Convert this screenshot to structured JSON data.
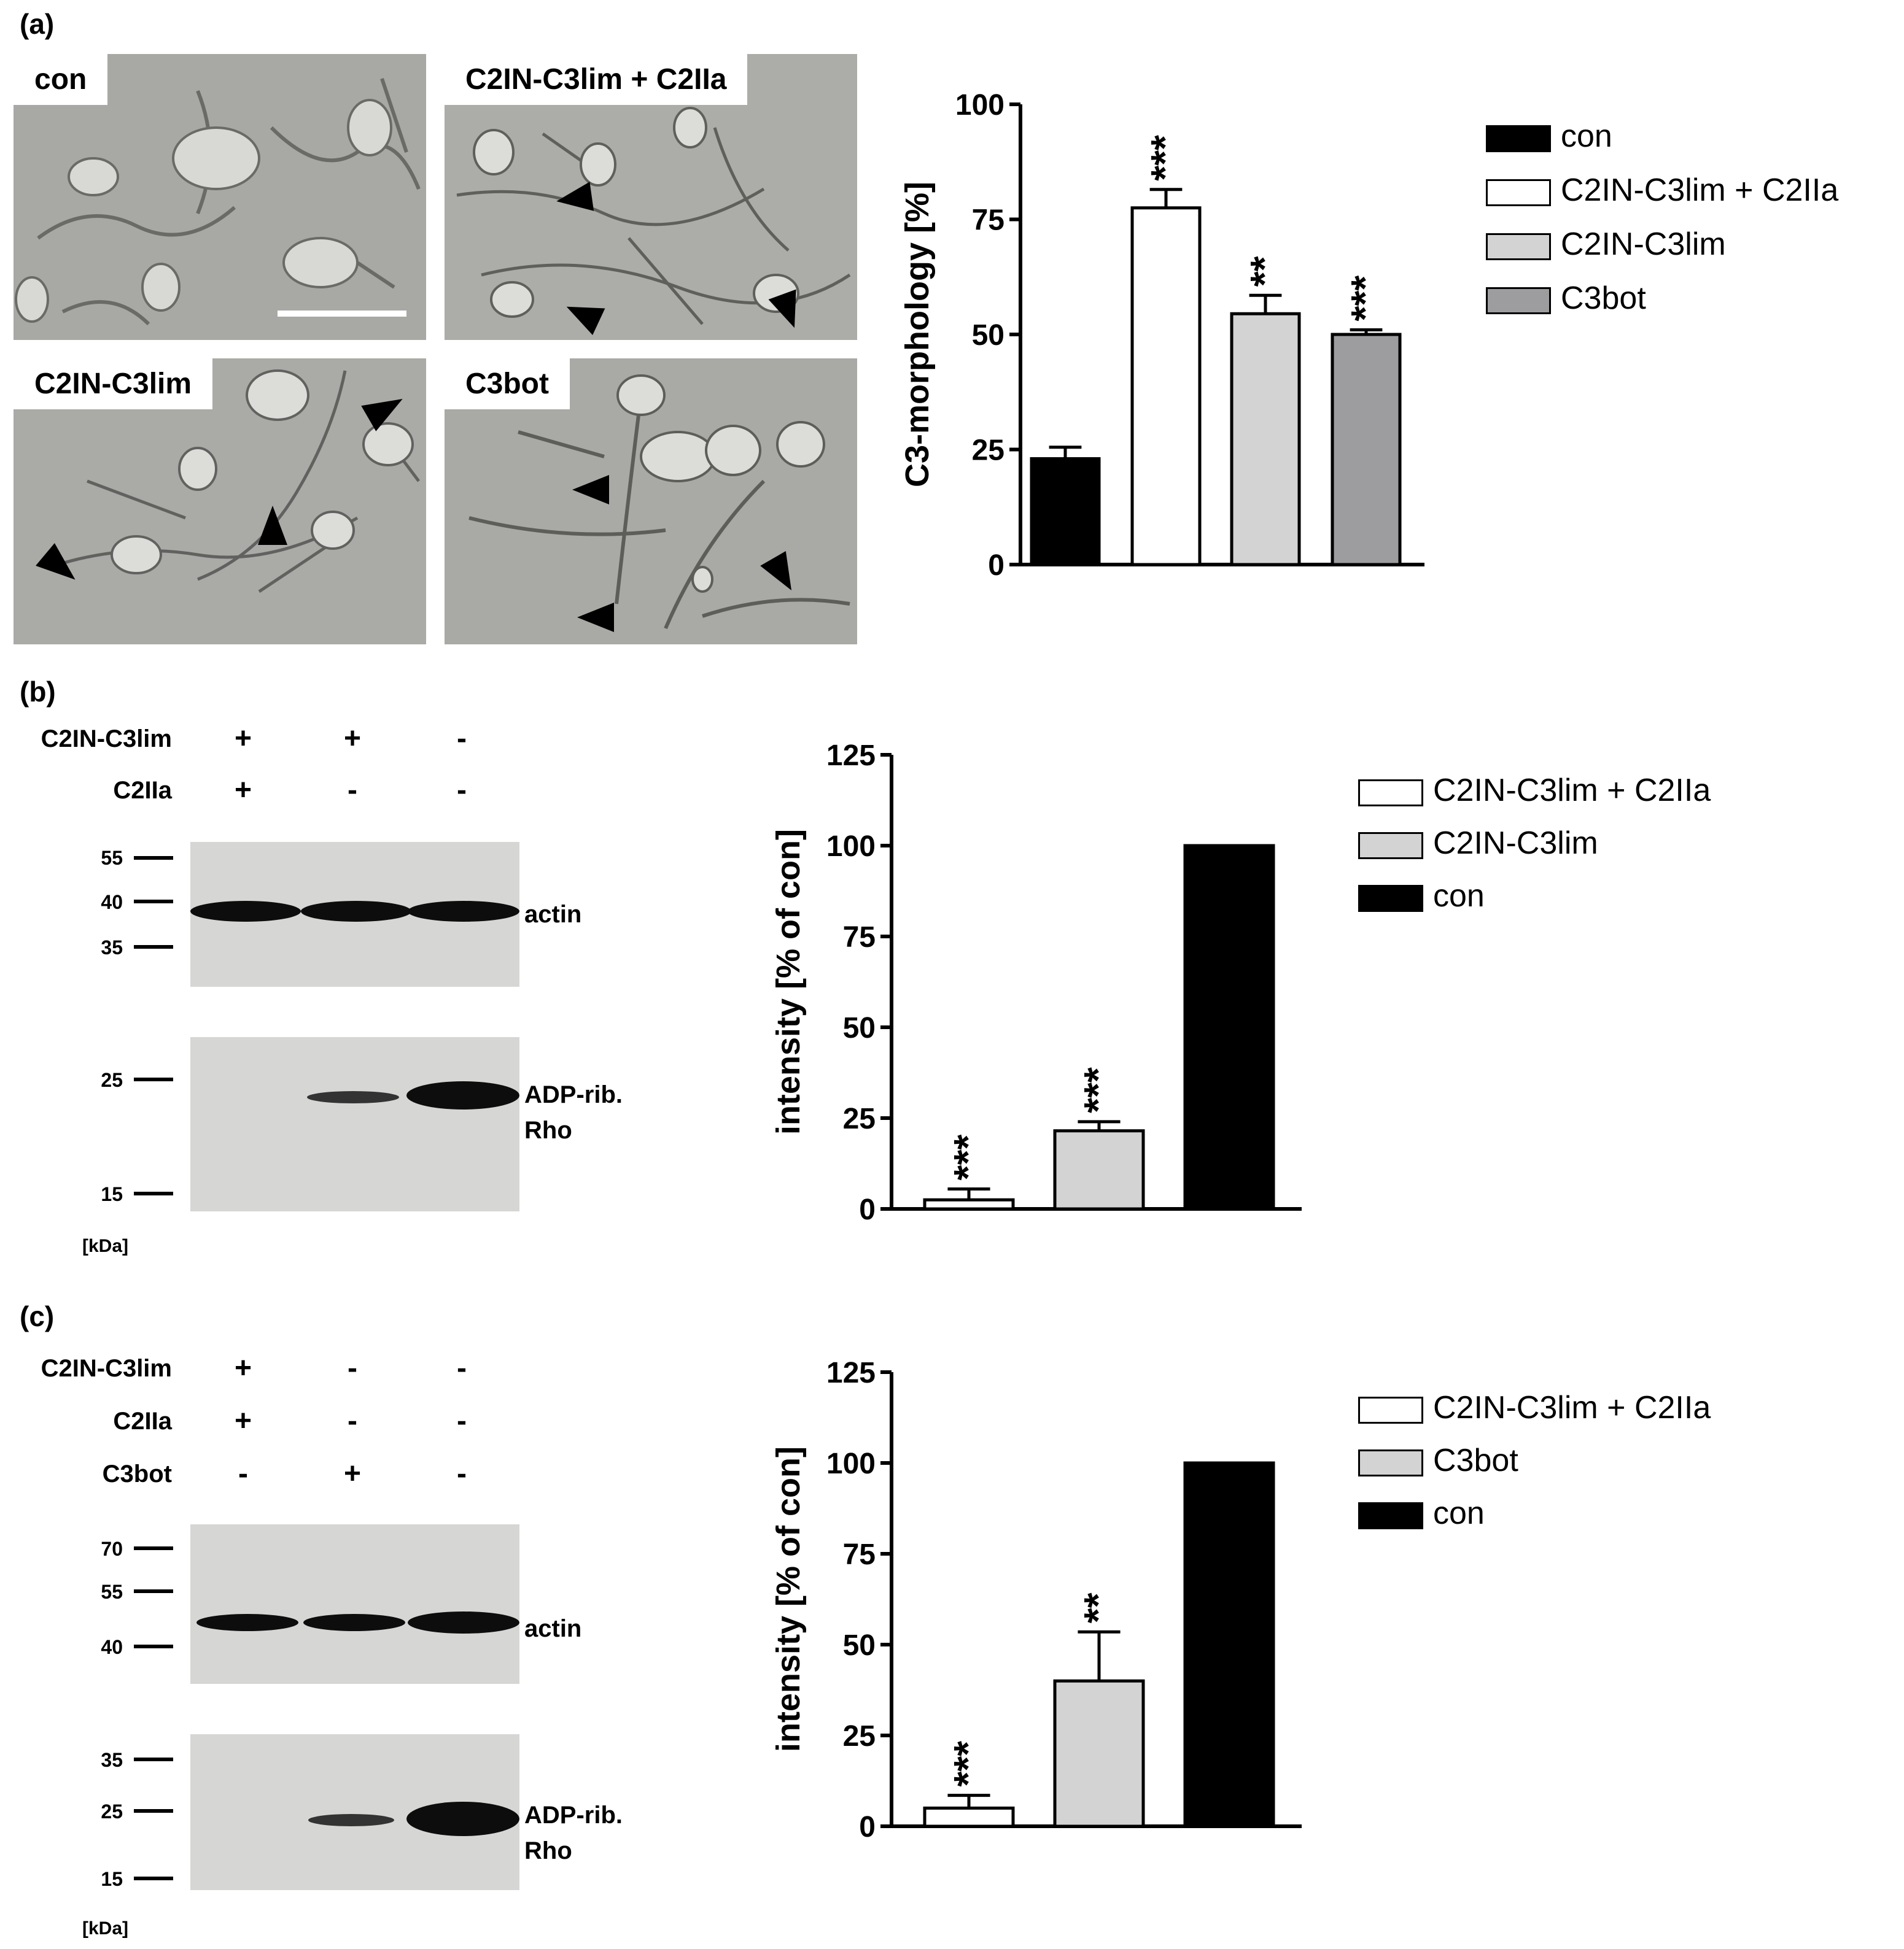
{
  "panel_a": {
    "label": "(a)",
    "micrographs": [
      {
        "label": "con"
      },
      {
        "label": "C2IN-C3lim + C2IIa"
      },
      {
        "label": "C2IN-C3lim"
      },
      {
        "label": "C3bot"
      }
    ],
    "legend": [
      {
        "label": "con",
        "color": "#000000"
      },
      {
        "label": "C2IN-C3lim + C2IIa",
        "color": "#ffffff"
      },
      {
        "label": "C2IN-C3lim",
        "color": "#d3d3d3"
      },
      {
        "label": "C3bot",
        "color": "#9d9da0"
      }
    ]
  },
  "panel_b": {
    "label": "(b)",
    "rows": [
      {
        "name": "C2IN-C3lim",
        "signs": [
          "+",
          "+",
          "-"
        ]
      },
      {
        "name": "C2IIa",
        "signs": [
          "+",
          "-",
          "-"
        ]
      }
    ],
    "actin_markers": [
      "55",
      "40",
      "35"
    ],
    "rho_markers": [
      "25",
      "15"
    ],
    "actin_label": "actin",
    "rho_label_1": "ADP-rib.",
    "rho_label_2": "Rho",
    "kda": "[kDa]",
    "legend": [
      {
        "label": "C2IN-C3lim + C2IIa",
        "color": "#ffffff"
      },
      {
        "label": "C2IN-C3lim",
        "color": "#d3d3d3"
      },
      {
        "label": "con",
        "color": "#000000"
      }
    ]
  },
  "panel_c": {
    "label": "(c)",
    "rows": [
      {
        "name": "C2IN-C3lim",
        "signs": [
          "+",
          "-",
          "-"
        ]
      },
      {
        "name": "C2IIa",
        "signs": [
          "+",
          "-",
          "-"
        ]
      },
      {
        "name": "C3bot",
        "signs": [
          "-",
          "+",
          "-"
        ]
      }
    ],
    "actin_markers": [
      "70",
      "55",
      "40"
    ],
    "rho_markers": [
      "35",
      "25",
      "15"
    ],
    "actin_label": "actin",
    "rho_label_1": "ADP-rib.",
    "rho_label_2": "Rho",
    "kda": "[kDa]",
    "legend": [
      {
        "label": "C2IN-C3lim + C2IIa",
        "color": "#ffffff"
      },
      {
        "label": "C3bot",
        "color": "#d3d3d3"
      },
      {
        "label": "con",
        "color": "#000000"
      }
    ]
  },
  "chart_data": [
    {
      "type": "bar",
      "ylabel": "C3-morphology [%]",
      "ylim": [
        0,
        100
      ],
      "yticks": [
        "0",
        "25",
        "50",
        "75",
        "100"
      ],
      "categories": [
        "con",
        "C2IN-C3lim + C2IIa",
        "C2IN-C3lim",
        "C3bot"
      ],
      "values": [
        23,
        77.5,
        54.5,
        50
      ],
      "errors": [
        2.5,
        4,
        4,
        1
      ],
      "significance": [
        "",
        "***",
        "**",
        "***"
      ],
      "colors": [
        "#000000",
        "#ffffff",
        "#d3d3d3",
        "#9d9da0"
      ]
    },
    {
      "type": "bar",
      "ylabel": "intensity [% of con]",
      "ylim": [
        0,
        125
      ],
      "yticks": [
        "0",
        "25",
        "50",
        "75",
        "100",
        "125"
      ],
      "categories": [
        "C2IN-C3lim + C2IIa",
        "C2IN-C3lim",
        "con"
      ],
      "values": [
        2.5,
        21.5,
        100
      ],
      "errors": [
        3,
        2.5,
        0
      ],
      "significance": [
        "***",
        "***",
        ""
      ],
      "colors": [
        "#ffffff",
        "#d3d3d3",
        "#000000"
      ]
    },
    {
      "type": "bar",
      "ylabel": "intensity [% of con]",
      "ylim": [
        0,
        125
      ],
      "yticks": [
        "0",
        "25",
        "50",
        "75",
        "100",
        "125"
      ],
      "categories": [
        "C2IN-C3lim + C2IIa",
        "C3bot",
        "con"
      ],
      "values": [
        5,
        40,
        100
      ],
      "errors": [
        3.5,
        13.5,
        0
      ],
      "significance": [
        "***",
        "**",
        ""
      ],
      "colors": [
        "#ffffff",
        "#d3d3d3",
        "#000000"
      ]
    }
  ]
}
